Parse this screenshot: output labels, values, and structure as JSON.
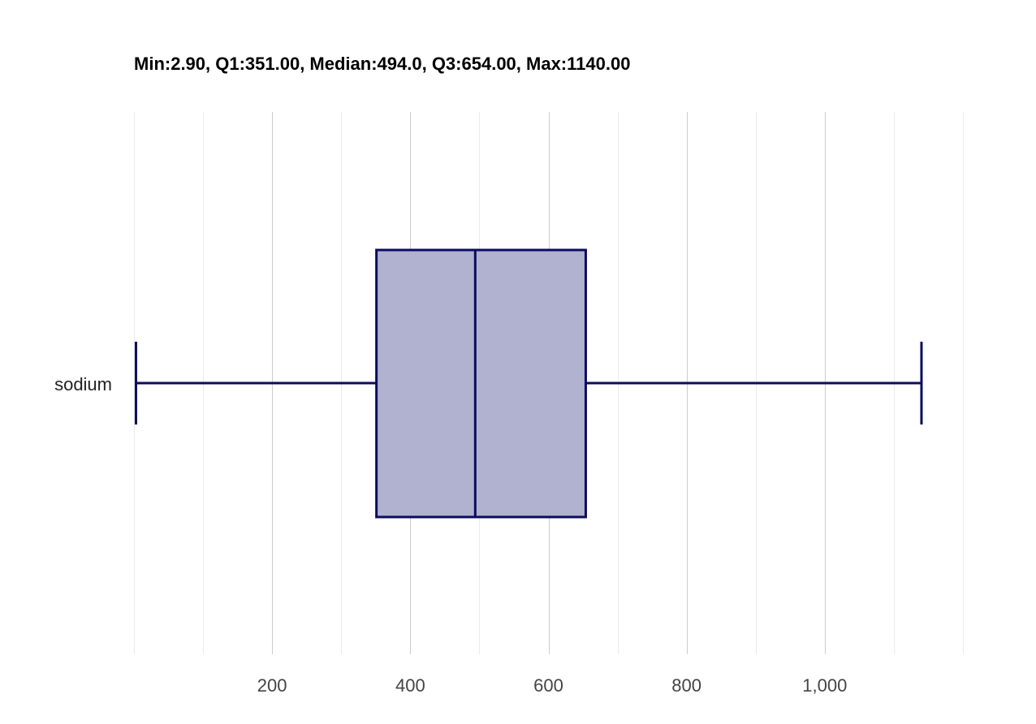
{
  "chart_data": {
    "type": "box",
    "title": "Min:2.90, Q1:351.00, Median:494.0, Q3:654.00, Max:1140.00",
    "category": "sodium",
    "stats": {
      "min": 2.9,
      "q1": 351.0,
      "median": 494.0,
      "q3": 654.0,
      "max": 1140.0
    },
    "x_axis": {
      "range": [
        0,
        1200
      ],
      "major_ticks": [
        200,
        400,
        600,
        800,
        1000
      ],
      "tick_labels": [
        "200",
        "400",
        "600",
        "800",
        "1,000"
      ],
      "minor_gridlines": [
        0,
        100,
        300,
        500,
        700,
        900,
        1100,
        1200
      ]
    },
    "orientation": "horizontal",
    "grid": true,
    "colors": {
      "box_fill": "#b1b1d0",
      "stroke": "#0c0c5e",
      "major_grid": "#cccccc",
      "minor_grid": "#ebebeb"
    }
  }
}
